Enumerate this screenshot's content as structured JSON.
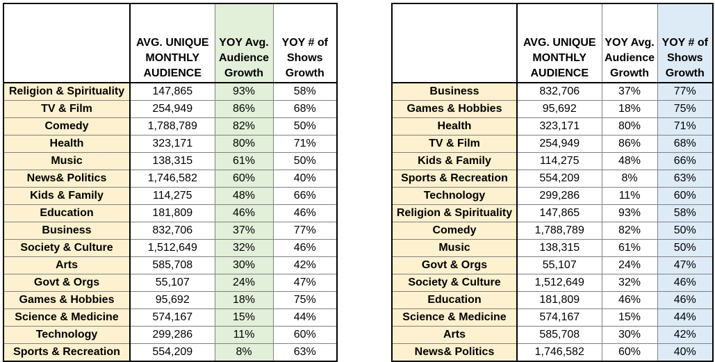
{
  "left_table": {
    "headers": [
      "",
      "AVG. UNIQUE\nMONTHLY\nAUDIENCE",
      "YOY Avg.\nAudience\nGrowth",
      "YOY # of\nShows\nGrowth"
    ],
    "rows": [
      [
        "Religion & Spirituality",
        "147,865",
        "93%",
        "58%"
      ],
      [
        "TV & Film",
        "254,949",
        "86%",
        "68%"
      ],
      [
        "Comedy",
        "1,788,789",
        "82%",
        "50%"
      ],
      [
        "Health",
        "323,171",
        "80%",
        "71%"
      ],
      [
        "Music",
        "138,315",
        "61%",
        "50%"
      ],
      [
        "News& Politics",
        "1,746,582",
        "60%",
        "40%"
      ],
      [
        "Kids & Family",
        "114,275",
        "48%",
        "66%"
      ],
      [
        "Education",
        "181,809",
        "46%",
        "46%"
      ],
      [
        "Business",
        "832,706",
        "37%",
        "77%"
      ],
      [
        "Society & Culture",
        "1,512,649",
        "32%",
        "46%"
      ],
      [
        "Arts",
        "585,708",
        "30%",
        "42%"
      ],
      [
        "Govt & Orgs",
        "55,107",
        "24%",
        "47%"
      ],
      [
        "Games & Hobbies",
        "95,692",
        "18%",
        "75%"
      ],
      [
        "Science & Medicine",
        "574,167",
        "15%",
        "44%"
      ],
      [
        "Technology",
        "299,286",
        "11%",
        "60%"
      ],
      [
        "Sports & Recreation",
        "554,209",
        "8%",
        "63%"
      ]
    ],
    "highlight_color": "#e2efd9"
  },
  "right_table": {
    "headers": [
      "",
      "AVG. UNIQUE\nMONTHLY\nAUDIENCE",
      "YOY Avg.\nAudience\nGrowth",
      "YOY # of\nShows\nGrowth"
    ],
    "rows": [
      [
        "Business",
        "832,706",
        "37%",
        "77%"
      ],
      [
        "Games & Hobbies",
        "95,692",
        "18%",
        "75%"
      ],
      [
        "Health",
        "323,171",
        "80%",
        "71%"
      ],
      [
        "TV & Film",
        "254,949",
        "86%",
        "68%"
      ],
      [
        "Kids & Family",
        "114,275",
        "48%",
        "66%"
      ],
      [
        "Sports & Recreation",
        "554,209",
        "8%",
        "63%"
      ],
      [
        "Technology",
        "299,286",
        "11%",
        "60%"
      ],
      [
        "Religion & Spirituality",
        "147,865",
        "93%",
        "58%"
      ],
      [
        "Comedy",
        "1,788,789",
        "82%",
        "50%"
      ],
      [
        "Music",
        "138,315",
        "61%",
        "50%"
      ],
      [
        "Govt & Orgs",
        "55,107",
        "24%",
        "47%"
      ],
      [
        "Society & Culture",
        "1,512,649",
        "32%",
        "46%"
      ],
      [
        "Education",
        "181,809",
        "46%",
        "46%"
      ],
      [
        "Science & Medicine",
        "574,167",
        "15%",
        "44%"
      ],
      [
        "Arts",
        "585,708",
        "30%",
        "42%"
      ],
      [
        "News& Politics",
        "1,746,582",
        "60%",
        "40%"
      ]
    ],
    "highlight_color": "#ddebf7"
  },
  "category_fill_color": "#fdf1cf"
}
